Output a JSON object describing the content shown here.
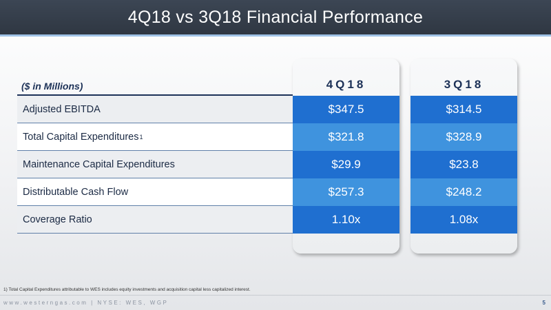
{
  "slide": {
    "title": "4Q18 vs 3Q18 Financial Performance",
    "units": "($ in Millions)",
    "columns": [
      "4Q18",
      "3Q18"
    ],
    "rows": [
      {
        "label": "Adjusted EBITDA",
        "footnote_mark": "",
        "q4_2018": "$347.5",
        "q3_2018": "$314.5"
      },
      {
        "label": "Total Capital Expenditures",
        "footnote_mark": "1",
        "q4_2018": "$321.8",
        "q3_2018": "$328.9"
      },
      {
        "label": "Maintenance Capital Expenditures",
        "footnote_mark": "",
        "q4_2018": "$29.9",
        "q3_2018": "$23.8"
      },
      {
        "label": "Distributable Cash Flow",
        "footnote_mark": "",
        "q4_2018": "$257.3",
        "q3_2018": "$248.2"
      },
      {
        "label": "Coverage Ratio",
        "footnote_mark": "",
        "q4_2018": "1.10x",
        "q3_2018": "1.08x"
      }
    ],
    "footnote": "1) Total Capital Expenditures attributable to WES includes equity investments and acquisition capital less capitalized interest.",
    "footer_text": "www.westerngas.com | NYSE: WES, WGP",
    "page_number": "5"
  },
  "colors": {
    "title_bar": "#2f3742",
    "accent_underline": "#9fc2e6",
    "value_dark": "#1f6fd0",
    "value_light": "#3f93de",
    "heading_text": "#1c3157"
  }
}
